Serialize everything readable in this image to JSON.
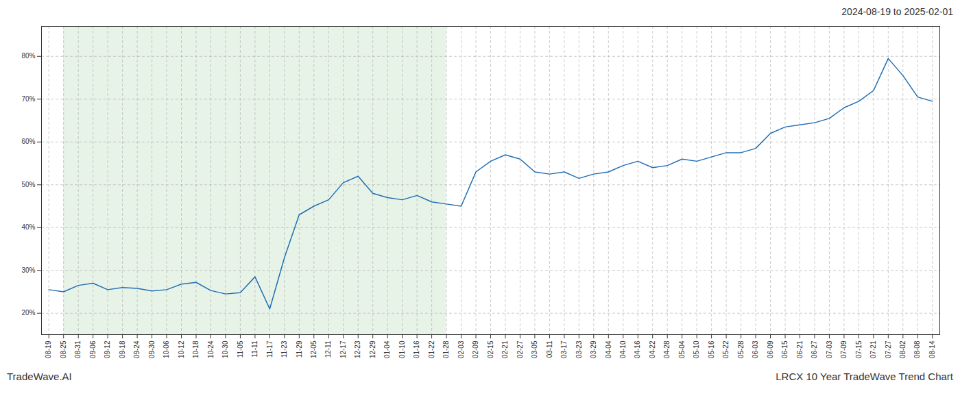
{
  "chart_data": {
    "type": "line",
    "title": "2024-08-19 to 2025-02-01",
    "annotations": [
      "TradeWave.AI",
      "LRCX 10 Year TradeWave Trend Chart"
    ],
    "categories": [
      "08-19",
      "08-25",
      "08-31",
      "09-06",
      "09-12",
      "09-18",
      "09-24",
      "09-30",
      "10-06",
      "10-12",
      "10-18",
      "10-24",
      "10-30",
      "11-05",
      "11-11",
      "11-17",
      "11-23",
      "11-29",
      "12-05",
      "12-11",
      "12-17",
      "12-23",
      "12-29",
      "01-04",
      "01-10",
      "01-16",
      "01-22",
      "01-28",
      "02-03",
      "02-09",
      "02-15",
      "02-21",
      "02-27",
      "03-05",
      "03-11",
      "03-17",
      "03-23",
      "03-29",
      "04-04",
      "04-10",
      "04-16",
      "04-22",
      "04-28",
      "05-04",
      "05-10",
      "05-16",
      "05-22",
      "05-28",
      "06-03",
      "06-09",
      "06-15",
      "06-21",
      "06-27",
      "07-03",
      "07-09",
      "07-15",
      "07-21",
      "07-27",
      "08-02",
      "08-08",
      "08-14"
    ],
    "values": [
      25.5,
      25.0,
      26.5,
      27.0,
      25.5,
      26.0,
      25.8,
      25.2,
      25.5,
      26.8,
      27.2,
      25.3,
      24.5,
      24.8,
      28.5,
      21.0,
      33.0,
      43.0,
      45.0,
      46.5,
      50.5,
      52.0,
      48.0,
      47.0,
      46.5,
      47.5,
      46.0,
      45.5,
      45.0,
      53.0,
      55.5,
      57.0,
      56.0,
      53.0,
      52.5,
      53.0,
      51.5,
      52.5,
      53.0,
      54.5,
      55.5,
      54.0,
      54.5,
      56.0,
      55.5,
      56.5,
      57.5,
      57.5,
      58.5,
      62.0,
      63.5,
      64.0,
      64.5,
      65.5,
      68.0,
      69.5,
      72.0,
      79.5,
      75.5,
      70.5,
      69.5
    ],
    "color": "#1f6eb5",
    "spans": [
      {
        "from": "08-25",
        "to": "01-28",
        "color": "#d6ead6"
      }
    ],
    "ylim": [
      15,
      87
    ],
    "yticks": [
      {
        "value": 20,
        "label": "20%"
      },
      {
        "value": 30,
        "label": "30%"
      },
      {
        "value": 40,
        "label": "40%"
      },
      {
        "value": 50,
        "label": "50%"
      },
      {
        "value": 60,
        "label": "60%"
      },
      {
        "value": 70,
        "label": "70%"
      },
      {
        "value": 80,
        "label": "80%"
      }
    ],
    "grid": true
  }
}
